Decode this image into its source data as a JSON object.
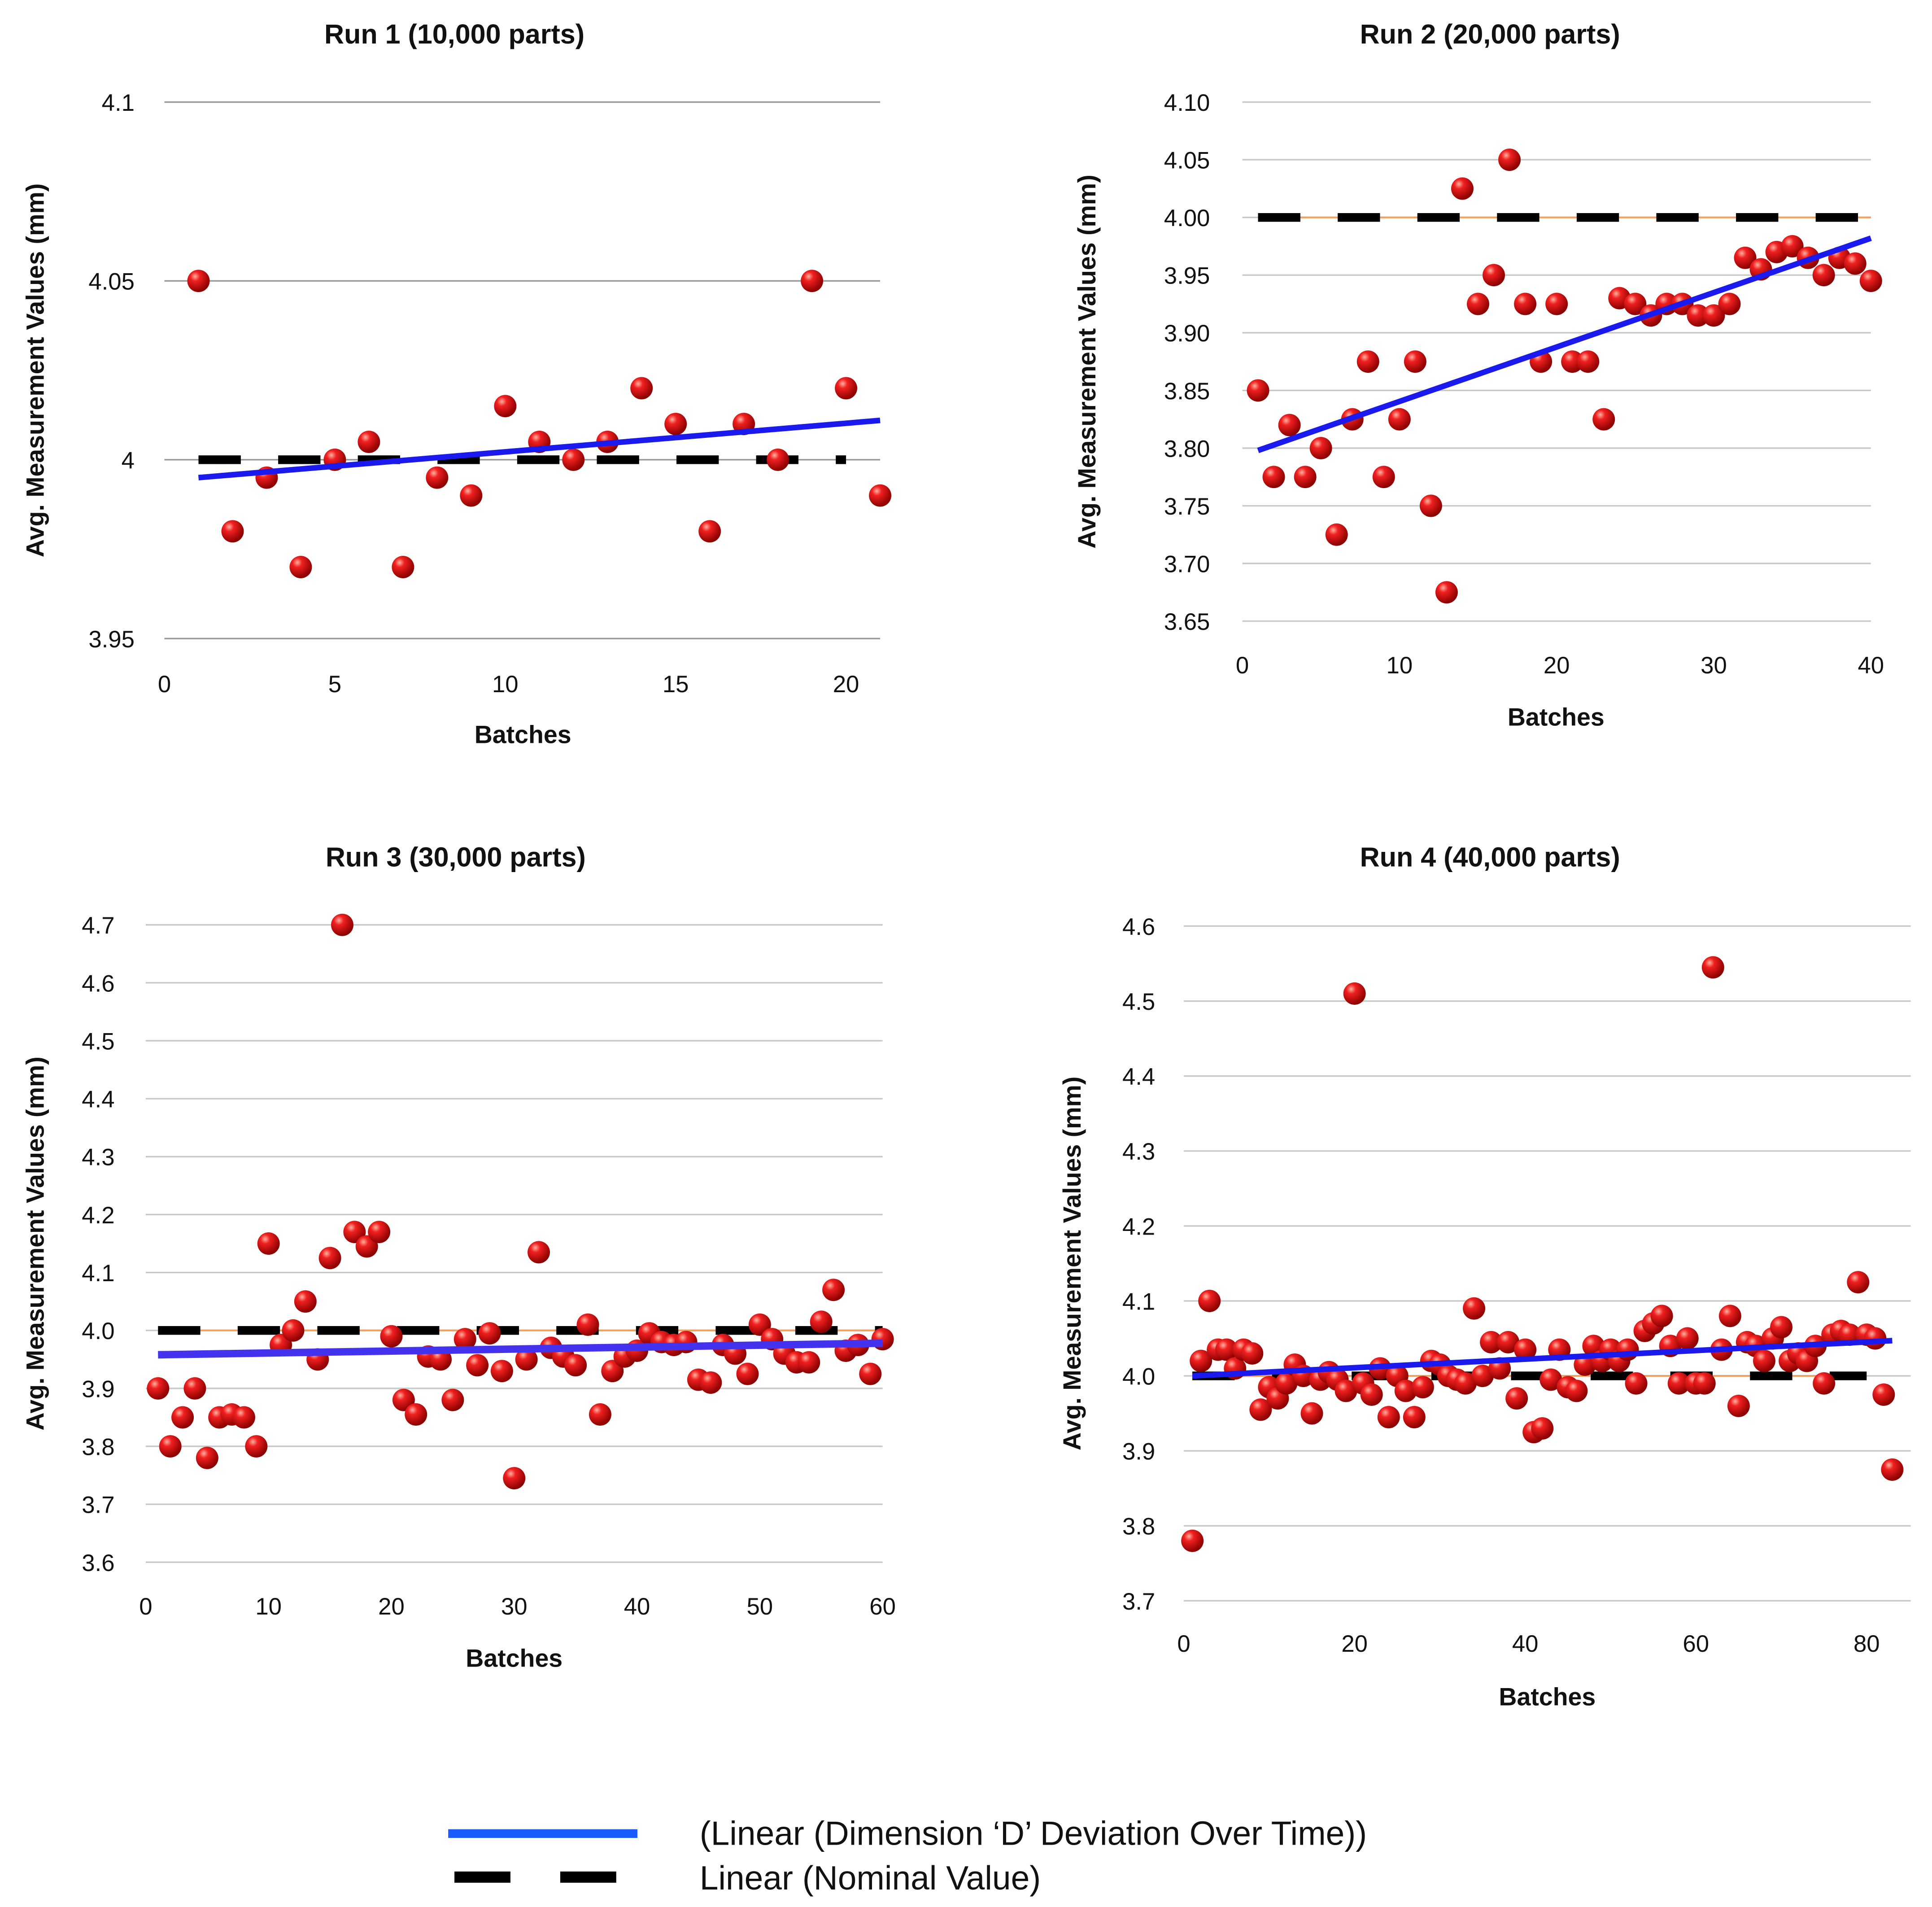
{
  "chart_data": [
    {
      "type": "scatter",
      "title": "Run 1 (10,000 parts)",
      "xlabel": "Batches",
      "ylabel": "Avg. Measurement Values (mm)",
      "xlim": [
        0,
        21
      ],
      "ylim": [
        3.95,
        4.1
      ],
      "xticks": [
        0,
        5,
        10,
        15,
        20
      ],
      "yticks": [
        3.95,
        4,
        4.05,
        4.1
      ],
      "ytick_labels": [
        "3.95",
        "4",
        "4.05",
        "4.1"
      ],
      "grid": true,
      "points": {
        "x": [
          1,
          2,
          3,
          4,
          5,
          6,
          7,
          8,
          9,
          10,
          11,
          12,
          13,
          14,
          15,
          16,
          17,
          18,
          19,
          20,
          21
        ],
        "y": [
          4.05,
          3.98,
          3.995,
          3.97,
          4.0,
          4.005,
          3.97,
          3.995,
          3.99,
          4.015,
          4.005,
          4.0,
          4.005,
          4.02,
          4.01,
          3.98,
          4.01,
          4.0,
          4.05,
          4.02,
          3.99
        ]
      },
      "trend": {
        "x": [
          1,
          21
        ],
        "y": [
          3.995,
          4.011
        ]
      },
      "nominal": {
        "x": [
          1,
          20
        ],
        "y": [
          4.0,
          4.0
        ]
      }
    },
    {
      "type": "scatter",
      "title": "Run 2 (20,000 parts)",
      "xlabel": "Batches",
      "ylabel": "Avg. Measurement Values (mm)",
      "xlim": [
        0,
        40
      ],
      "ylim": [
        3.65,
        4.1
      ],
      "xticks": [
        0,
        10,
        20,
        30,
        40
      ],
      "yticks": [
        3.65,
        3.7,
        3.75,
        3.8,
        3.85,
        3.9,
        3.95,
        4.0,
        4.05,
        4.1
      ],
      "ytick_labels": [
        "3.65",
        "3.70",
        "3.75",
        "3.80",
        "3.85",
        "3.90",
        "3.95",
        "4.00",
        "4.05",
        "4.10"
      ],
      "grid": true,
      "points": {
        "x": [
          1,
          2,
          3,
          4,
          5,
          6,
          7,
          8,
          9,
          10,
          11,
          12,
          13,
          14,
          15,
          16,
          17,
          18,
          19,
          20,
          21,
          22,
          23,
          24,
          25,
          26,
          27,
          28,
          29,
          30,
          31,
          32,
          33,
          34,
          35,
          36,
          37,
          38,
          39,
          40
        ],
        "y": [
          3.85,
          3.775,
          3.82,
          3.775,
          3.8,
          3.725,
          3.825,
          3.875,
          3.775,
          3.825,
          3.875,
          3.75,
          3.675,
          4.025,
          3.925,
          3.95,
          4.05,
          3.925,
          3.875,
          3.925,
          3.875,
          3.875,
          3.825,
          3.93,
          3.925,
          3.915,
          3.925,
          3.925,
          3.915,
          3.915,
          3.925,
          3.965,
          3.955,
          3.97,
          3.975,
          3.965,
          3.95,
          3.965,
          3.96,
          3.945
        ]
      },
      "trend": {
        "x": [
          1,
          40
        ],
        "y": [
          3.798,
          3.982
        ]
      },
      "nominal": {
        "x": [
          1,
          40
        ],
        "y": [
          4.0,
          4.0
        ]
      }
    },
    {
      "type": "scatter",
      "title": "Run 3 (30,000 parts)",
      "xlabel": "Batches",
      "ylabel": "Avg. Measurement Values (mm)",
      "xlim": [
        0,
        60
      ],
      "ylim": [
        3.6,
        4.7
      ],
      "xticks": [
        0,
        10,
        20,
        30,
        40,
        50,
        60
      ],
      "yticks": [
        3.6,
        3.7,
        3.8,
        3.9,
        4.0,
        4.1,
        4.2,
        4.3,
        4.4,
        4.5,
        4.6,
        4.7
      ],
      "ytick_labels": [
        "3.6",
        "3.7",
        "3.8",
        "3.9",
        "4.0",
        "4.1",
        "4.2",
        "4.3",
        "4.4",
        "4.5",
        "4.6",
        "4.7"
      ],
      "grid": true,
      "points": {
        "x": [
          1,
          2,
          3,
          4,
          5,
          6,
          7,
          8,
          9,
          10,
          11,
          12,
          13,
          14,
          15,
          16,
          17,
          18,
          19,
          20,
          21,
          22,
          23,
          24,
          25,
          26,
          27,
          28,
          29,
          30,
          31,
          32,
          33,
          34,
          35,
          36,
          37,
          38,
          39,
          40,
          41,
          42,
          43,
          44,
          45,
          46,
          47,
          48,
          49,
          50,
          51,
          52,
          53,
          54,
          55,
          56,
          57,
          58,
          59,
          60
        ],
        "y": [
          3.9,
          3.8,
          3.85,
          3.9,
          3.78,
          3.85,
          3.855,
          3.85,
          3.8,
          4.15,
          3.975,
          4.0,
          4.05,
          3.95,
          4.125,
          4.7,
          4.17,
          4.145,
          4.17,
          3.99,
          3.88,
          3.855,
          3.955,
          3.95,
          3.88,
          3.985,
          3.94,
          3.995,
          3.93,
          3.745,
          3.95,
          4.135,
          3.97,
          3.955,
          3.94,
          4.01,
          3.855,
          3.93,
          3.955,
          3.965,
          3.995,
          3.98,
          3.975,
          3.98,
          3.915,
          3.91,
          3.975,
          3.96,
          3.925,
          4.01,
          3.985,
          3.96,
          3.945,
          3.945,
          4.015,
          4.07,
          3.965,
          3.975,
          3.925,
          3.985
        ]
      },
      "trend": {
        "x": [
          1,
          60
        ],
        "y": [
          3.958,
          3.978
        ]
      },
      "nominal": {
        "x": [
          1,
          60
        ],
        "y": [
          4.0,
          4.0
        ]
      }
    },
    {
      "type": "scatter",
      "title": "Run 4 (40,000 parts)",
      "xlabel": "Batches",
      "ylabel": "Avg. Measurement Values (mm)",
      "xlim": [
        0,
        84
      ],
      "ylim": [
        3.7,
        4.6
      ],
      "xticks": [
        0,
        20,
        40,
        60,
        80
      ],
      "yticks": [
        3.7,
        3.8,
        3.9,
        4.0,
        4.1,
        4.2,
        4.3,
        4.4,
        4.5,
        4.6
      ],
      "ytick_labels": [
        "3.7",
        "3.8",
        "3.9",
        "4.0",
        "4.1",
        "4.2",
        "4.3",
        "4.4",
        "4.5",
        "4.6"
      ],
      "grid": true,
      "points": {
        "x": [
          1,
          2,
          3,
          4,
          5,
          6,
          7,
          8,
          9,
          10,
          11,
          12,
          13,
          14,
          15,
          16,
          17,
          18,
          19,
          20,
          21,
          22,
          23,
          24,
          25,
          26,
          27,
          28,
          29,
          30,
          31,
          32,
          33,
          34,
          35,
          36,
          37,
          38,
          39,
          40,
          41,
          42,
          43,
          44,
          45,
          46,
          47,
          48,
          49,
          50,
          51,
          52,
          53,
          54,
          55,
          56,
          57,
          58,
          59,
          60,
          61,
          62,
          63,
          64,
          65,
          66,
          67,
          68,
          69,
          70,
          71,
          72,
          73,
          74,
          75,
          76,
          77,
          78,
          79,
          80,
          81,
          82,
          83
        ],
        "y": [
          3.78,
          4.02,
          4.1,
          4.035,
          4.035,
          4.01,
          4.035,
          4.03,
          3.955,
          3.985,
          3.97,
          3.99,
          4.015,
          4.0,
          3.95,
          3.995,
          4.005,
          3.995,
          3.98,
          4.51,
          3.99,
          3.975,
          4.01,
          3.945,
          4.0,
          3.98,
          3.945,
          3.985,
          4.02,
          4.015,
          4.0,
          3.995,
          3.99,
          4.09,
          4.0,
          4.045,
          4.01,
          4.045,
          3.97,
          4.035,
          3.925,
          3.93,
          3.995,
          4.035,
          3.985,
          3.98,
          4.015,
          4.04,
          4.02,
          4.035,
          4.02,
          4.035,
          3.99,
          4.06,
          4.07,
          4.08,
          4.04,
          3.99,
          4.05,
          3.99,
          3.99,
          4.545,
          4.035,
          4.08,
          3.96,
          4.045,
          4.04,
          4.02,
          4.05,
          4.065,
          4.02,
          4.03,
          4.02,
          4.04,
          3.99,
          4.055,
          4.06,
          4.055,
          4.125,
          4.055,
          4.05,
          3.975,
          3.875
        ]
      },
      "trend": {
        "x": [
          1,
          83
        ],
        "y": [
          4.0,
          4.047
        ]
      },
      "nominal": {
        "x": [
          1,
          80
        ],
        "y": [
          4.0,
          4.0
        ]
      }
    }
  ],
  "legend": {
    "placement": "bottom-center",
    "items": [
      {
        "label": "(Linear (Dimension ‘D’ Deviation Over Time))",
        "color": "#1a5cff",
        "style": "solid"
      },
      {
        "label": "Linear (Nominal Value)",
        "color": "#000000",
        "style": "dashed"
      }
    ]
  },
  "colors": {
    "point": "#e01010",
    "trend": "#1a1aee",
    "nominal": "#000000",
    "nominal_thin": "#f0a060",
    "grid": "#c8c8c8"
  }
}
